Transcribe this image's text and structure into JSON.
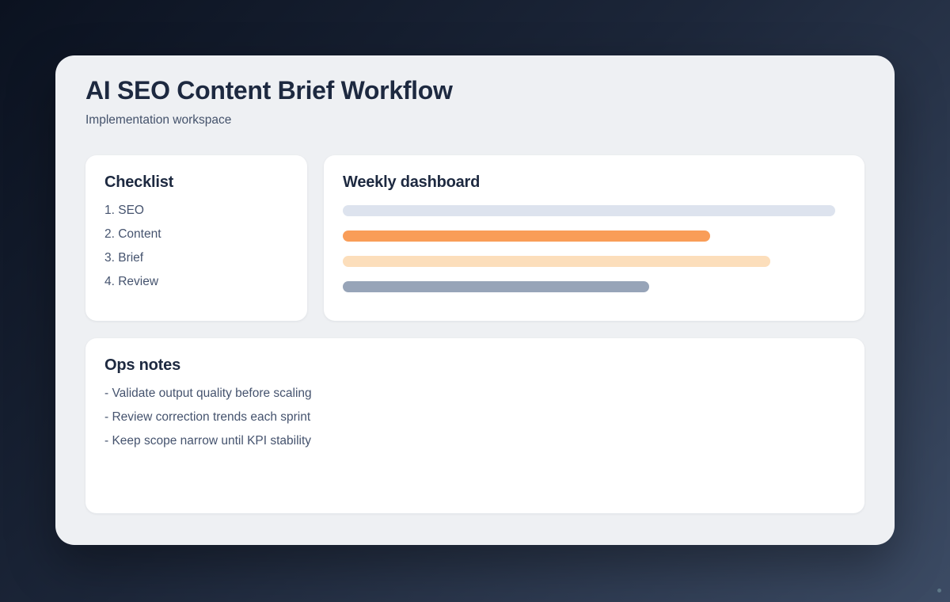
{
  "header": {
    "title": "AI SEO Content Brief Workflow",
    "subtitle": "Implementation workspace"
  },
  "checklist": {
    "heading": "Checklist",
    "items": [
      "1. SEO",
      "2. Content",
      "3. Brief",
      "4. Review"
    ]
  },
  "dashboard": {
    "heading": "Weekly dashboard",
    "bars": [
      {
        "name": "dashboard-bar-1",
        "color": "#dde3ee",
        "width_pct": 98
      },
      {
        "name": "dashboard-bar-2",
        "color": "#f99d58",
        "width_pct": 73
      },
      {
        "name": "dashboard-bar-3",
        "color": "#fcdebb",
        "width_pct": 85
      },
      {
        "name": "dashboard-bar-4",
        "color": "#97a4b8",
        "width_pct": 61
      }
    ]
  },
  "ops_notes": {
    "heading": "Ops notes",
    "items": [
      "- Validate output quality before scaling",
      "- Review correction trends each sprint",
      "- Keep scope narrow until KPI stability"
    ]
  },
  "colors": {
    "background_gradient_from": "#0b1220",
    "background_gradient_to": "#3c4b64",
    "panel_background": "#eef0f3",
    "card_background": "#ffffff",
    "heading_text": "#1d2940",
    "body_text": "#45536e",
    "accent_orange": "#f99d58",
    "accent_peach": "#fcdebb",
    "accent_slate": "#97a4b8",
    "accent_gray_blue": "#dde3ee"
  }
}
